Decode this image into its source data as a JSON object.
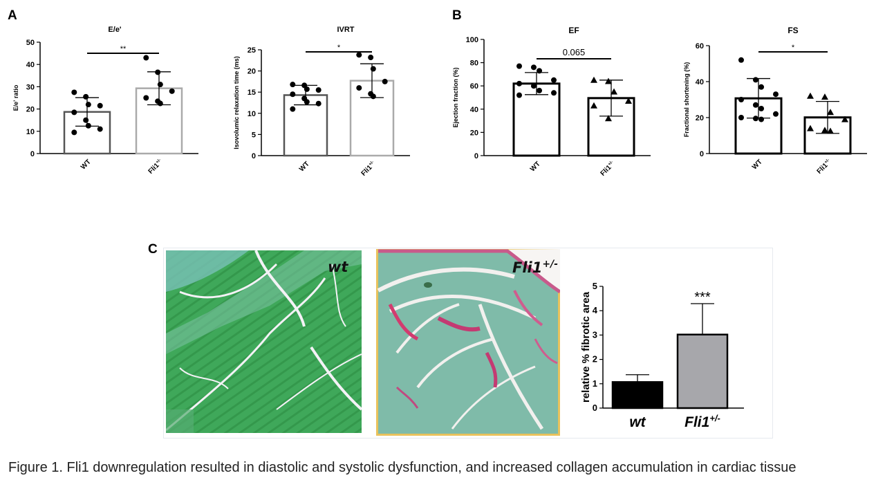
{
  "panels": {
    "a": "A",
    "b": "B",
    "c": "C"
  },
  "caption": "Figure 1. Fli1 downregulation resulted in diastolic and systolic dysfunction, and increased collagen accumulation in cardiac tissue",
  "histology": {
    "wt_label": "wt",
    "fli_label_base": "Fli1",
    "fli_label_sup": "+/-",
    "wt_color": "#3aa657",
    "fli_color": "#7ab7a5"
  },
  "chart_data": [
    {
      "id": "ee",
      "type": "bar",
      "title": "E/e'",
      "ylabel": "E/e' ratio",
      "ylim": [
        0,
        50
      ],
      "yticks": [
        "0",
        "10",
        "20",
        "30",
        "40",
        "50"
      ],
      "categories": [
        "WT",
        "Fli1"
      ],
      "category_sup": [
        "",
        "+/-"
      ],
      "values": [
        18.7,
        29.3
      ],
      "sd": [
        6.4,
        7.4
      ],
      "bar_stroke": [
        "#555555",
        "#aaaaaa"
      ],
      "bar_fill": [
        "#ffffff",
        "#ffffff"
      ],
      "marker": "circle",
      "points": [
        [
          27.5,
          25.5,
          22,
          21.5,
          18.5,
          15,
          12.5,
          11,
          9.5
        ],
        [
          43,
          36.5,
          31,
          28,
          25,
          23.5,
          22.5
        ]
      ],
      "significance": "**"
    },
    {
      "id": "ivrt",
      "type": "bar",
      "title": "IVRT",
      "ylabel": "Isovolumic relaxation time (ms)",
      "ylim": [
        0,
        25
      ],
      "yticks": [
        "0",
        "5",
        "10",
        "15",
        "20",
        "25"
      ],
      "categories": [
        "WT",
        "Fli1"
      ],
      "category_sup": [
        "",
        "+/-"
      ],
      "values": [
        14.3,
        17.7
      ],
      "sd": [
        2.3,
        4.0
      ],
      "bar_stroke": [
        "#555555",
        "#aaaaaa"
      ],
      "bar_fill": [
        "#ffffff",
        "#ffffff"
      ],
      "marker": "circle",
      "points": [
        [
          16.8,
          16.6,
          15.7,
          15.5,
          14.5,
          13.5,
          12.7,
          12.3,
          11.0
        ],
        [
          23.8,
          23.2,
          20.5,
          17.5,
          16.0,
          14.6,
          14.0
        ]
      ],
      "significance": "*"
    },
    {
      "id": "ef",
      "type": "bar",
      "title": "EF",
      "ylabel": "Ejection fraction (%)",
      "ylim": [
        0,
        100
      ],
      "yticks": [
        "0",
        "20",
        "40",
        "60",
        "80",
        "100"
      ],
      "categories": [
        "WT",
        "Fli1"
      ],
      "category_sup": [
        "",
        "+/-"
      ],
      "values": [
        62,
        49.5
      ],
      "sd": [
        9.5,
        15.5
      ],
      "bar_stroke": [
        "#000000",
        "#000000"
      ],
      "bar_fill": [
        "#ffffff",
        "#ffffff"
      ],
      "marker": "circle/triangle",
      "points": [
        [
          77,
          76,
          73,
          65,
          62,
          60,
          56,
          54,
          52
        ],
        [
          65,
          64,
          55,
          47,
          43,
          32
        ]
      ],
      "significance": "0.065"
    },
    {
      "id": "fs",
      "type": "bar",
      "title": "FS",
      "ylabel": "Fractional shortening (%)",
      "ylim": [
        0,
        60
      ],
      "yticks": [
        "0",
        "20",
        "40",
        "60"
      ],
      "categories": [
        "WT",
        "Fli1"
      ],
      "category_sup": [
        "",
        "+/-"
      ],
      "values": [
        30.7,
        20.1
      ],
      "sd": [
        11,
        8.9
      ],
      "bar_stroke": [
        "#000000",
        "#000000"
      ],
      "bar_fill": [
        "#ffffff",
        "#ffffff"
      ],
      "marker": "circle/triangle",
      "points": [
        [
          52,
          41,
          37,
          33,
          30,
          27,
          25,
          22,
          20,
          19.5,
          19
        ],
        [
          32,
          31.5,
          23,
          19,
          14,
          13,
          12.5
        ]
      ],
      "significance": "*"
    },
    {
      "id": "fibrotic",
      "type": "bar",
      "title": "",
      "ylabel": "relative % fibrotic area",
      "ylim": [
        0,
        5
      ],
      "yticks": [
        "0",
        "1",
        "2",
        "3",
        "4",
        "5"
      ],
      "categories": [
        "wt",
        "Fli1"
      ],
      "category_sup": [
        "",
        "+/-"
      ],
      "values": [
        1.07,
        3.02
      ],
      "sd": [
        0.3,
        1.27
      ],
      "bar_stroke": [
        "#000000",
        "#000000"
      ],
      "bar_fill": [
        "#000000",
        "#a7a7ab"
      ],
      "significance": "***"
    }
  ]
}
